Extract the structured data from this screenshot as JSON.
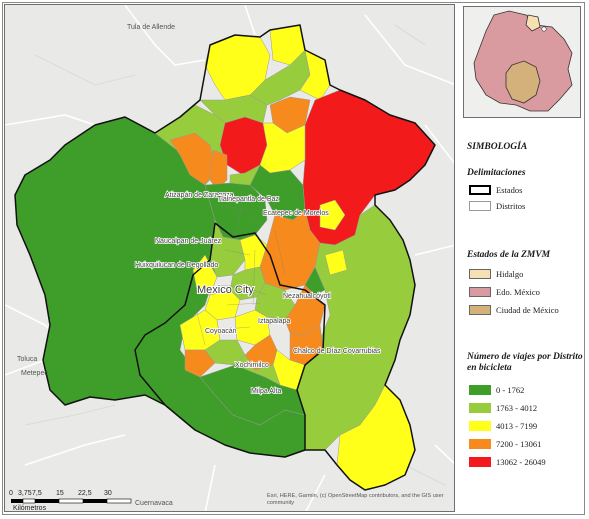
{
  "map_labels": {
    "tula": "Tula de Allende",
    "atizapan": "Atizapán de Zaragoza",
    "tlalnepantla": "Tlalnepantla de Baz",
    "ecatepec": "Ecatepec de Morelos",
    "naucalpan": "Naucalpan de Juárez",
    "huixquilucan": "Huixquilucan de Degollado",
    "mexico_city": "Mexico City",
    "nezahualcoyotl": "Nezahualcóyotl",
    "iztapalapa": "Iztapalapa",
    "coyoacan": "Coyoacán",
    "chalco": "Chalco de Díaz Covarrubias",
    "xochimilco": "Xochimilco",
    "milpa_alta": "Milpa Alta",
    "toluca": "Toluca",
    "metepec": "Metepec",
    "cuernavaca": "Cuernavaca"
  },
  "scale_bar": {
    "ticks": [
      "0",
      "3,75",
      "7,5",
      "15",
      "22,5",
      "30"
    ],
    "unit": "Kilómetros"
  },
  "credits": "Esri, HERE, Garmin, (c) OpenStreetMap contributors, and the GIS user community",
  "legend": {
    "title": "SIMBOLOGÍA",
    "delimitaciones": {
      "title": "Delimitaciones",
      "items": [
        {
          "label": "Estados",
          "stroke": "#000000",
          "fill": "#ffffff"
        },
        {
          "label": "Distritos",
          "stroke": "#9a9a9a",
          "fill": "#ffffff"
        }
      ]
    },
    "estados": {
      "title": "Estados de la ZMVM",
      "items": [
        {
          "label": "Hidalgo",
          "color": "#f6dfb0"
        },
        {
          "label": "Edo. México",
          "color": "#d99aa0"
        },
        {
          "label": "Ciudad de México",
          "color": "#d4b07a"
        }
      ]
    },
    "viajes": {
      "title": "Número de viajes por Distrito en bicicleta",
      "items": [
        {
          "label": "0 - 1762",
          "color": "#3f9e2a"
        },
        {
          "label": "1763 - 4012",
          "color": "#97cc3c"
        },
        {
          "label": "4013 - 7199",
          "color": "#ffff1a"
        },
        {
          "label": "7200 - 13061",
          "color": "#f78a1c"
        },
        {
          "label": "13062 - 26049",
          "color": "#f21a1a"
        }
      ]
    }
  }
}
